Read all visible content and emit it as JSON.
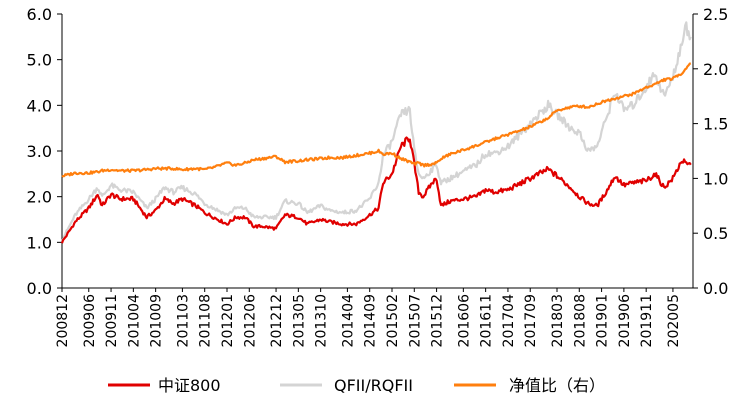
{
  "chart_data": {
    "type": "line",
    "title": "",
    "xlabel": "",
    "ylabel": "",
    "y_left": {
      "lim": [
        0,
        6
      ],
      "ticks": [
        "0.0",
        "1.0",
        "2.0",
        "3.0",
        "4.0",
        "5.0",
        "6.0"
      ]
    },
    "y_right": {
      "lim": [
        0,
        2.5
      ],
      "ticks": [
        "0.0",
        "0.5",
        "1.0",
        "1.5",
        "2.0",
        "2.5"
      ]
    },
    "x_tick_labels": [
      "200812",
      "200906",
      "200911",
      "201004",
      "201009",
      "201103",
      "201108",
      "201201",
      "201206",
      "201212",
      "201305",
      "201310",
      "201404",
      "201409",
      "201502",
      "201507",
      "201512",
      "201606",
      "201611",
      "201704",
      "201709",
      "201803",
      "201808",
      "201901",
      "201906",
      "201911",
      "202005"
    ],
    "grid": false,
    "legend_position": "bottom",
    "series": [
      {
        "name": "中证800",
        "axis": "left",
        "color": "#e00000",
        "points": [
          [
            "200812",
            1.0
          ],
          [
            "200903",
            1.45
          ],
          [
            "200906",
            1.75
          ],
          [
            "200908",
            2.05
          ],
          [
            "200909",
            1.8
          ],
          [
            "200911",
            2.05
          ],
          [
            "201001",
            1.95
          ],
          [
            "201004",
            1.95
          ],
          [
            "201007",
            1.55
          ],
          [
            "201009",
            1.7
          ],
          [
            "201011",
            1.95
          ],
          [
            "201101",
            1.85
          ],
          [
            "201103",
            1.95
          ],
          [
            "201106",
            1.8
          ],
          [
            "201108",
            1.65
          ],
          [
            "201110",
            1.55
          ],
          [
            "201201",
            1.4
          ],
          [
            "201203",
            1.55
          ],
          [
            "201205",
            1.55
          ],
          [
            "201207",
            1.35
          ],
          [
            "201209",
            1.35
          ],
          [
            "201212",
            1.3
          ],
          [
            "201302",
            1.6
          ],
          [
            "201305",
            1.55
          ],
          [
            "201307",
            1.4
          ],
          [
            "201310",
            1.5
          ],
          [
            "201312",
            1.45
          ],
          [
            "201403",
            1.4
          ],
          [
            "201406",
            1.4
          ],
          [
            "201409",
            1.6
          ],
          [
            "201411",
            1.75
          ],
          [
            "201412",
            2.3
          ],
          [
            "201502",
            2.5
          ],
          [
            "201504",
            3.1
          ],
          [
            "201506",
            3.3
          ],
          [
            "201507",
            2.7
          ],
          [
            "201508",
            2.1
          ],
          [
            "201509",
            2.0
          ],
          [
            "201511",
            2.3
          ],
          [
            "201512",
            2.4
          ],
          [
            "201601",
            1.8
          ],
          [
            "201603",
            1.9
          ],
          [
            "201606",
            1.95
          ],
          [
            "201609",
            2.0
          ],
          [
            "201611",
            2.15
          ],
          [
            "201701",
            2.1
          ],
          [
            "201704",
            2.15
          ],
          [
            "201707",
            2.3
          ],
          [
            "201709",
            2.4
          ],
          [
            "201801",
            2.6
          ],
          [
            "201803",
            2.45
          ],
          [
            "201806",
            2.2
          ],
          [
            "201808",
            2.0
          ],
          [
            "201810",
            1.85
          ],
          [
            "201812",
            1.8
          ],
          [
            "201902",
            2.1
          ],
          [
            "201904",
            2.45
          ],
          [
            "201906",
            2.25
          ],
          [
            "201908",
            2.3
          ],
          [
            "201911",
            2.35
          ],
          [
            "202001",
            2.5
          ],
          [
            "202003",
            2.2
          ],
          [
            "202005",
            2.4
          ],
          [
            "202007",
            2.8
          ],
          [
            "202008",
            2.7
          ],
          [
            "202009",
            2.7
          ]
        ]
      },
      {
        "name": "QFII/RQFII",
        "axis": "left",
        "color": "#d4d4d4",
        "points": [
          [
            "200812",
            1.05
          ],
          [
            "200903",
            1.6
          ],
          [
            "200906",
            1.95
          ],
          [
            "200908",
            2.2
          ],
          [
            "200909",
            2.0
          ],
          [
            "200911",
            2.25
          ],
          [
            "201001",
            2.15
          ],
          [
            "201004",
            2.1
          ],
          [
            "201007",
            1.75
          ],
          [
            "201009",
            1.95
          ],
          [
            "201011",
            2.2
          ],
          [
            "201101",
            2.1
          ],
          [
            "201103",
            2.2
          ],
          [
            "201106",
            2.05
          ],
          [
            "201108",
            1.85
          ],
          [
            "201110",
            1.75
          ],
          [
            "201201",
            1.6
          ],
          [
            "201203",
            1.75
          ],
          [
            "201205",
            1.75
          ],
          [
            "201207",
            1.55
          ],
          [
            "201209",
            1.55
          ],
          [
            "201212",
            1.55
          ],
          [
            "201302",
            1.9
          ],
          [
            "201305",
            1.85
          ],
          [
            "201307",
            1.65
          ],
          [
            "201310",
            1.8
          ],
          [
            "201312",
            1.7
          ],
          [
            "201403",
            1.65
          ],
          [
            "201406",
            1.7
          ],
          [
            "201409",
            1.95
          ],
          [
            "201411",
            2.3
          ],
          [
            "201412",
            2.9
          ],
          [
            "201502",
            3.2
          ],
          [
            "201504",
            3.8
          ],
          [
            "201506",
            3.9
          ],
          [
            "201507",
            3.0
          ],
          [
            "201508",
            2.5
          ],
          [
            "201509",
            2.4
          ],
          [
            "201511",
            2.6
          ],
          [
            "201512",
            2.7
          ],
          [
            "201601",
            2.3
          ],
          [
            "201603",
            2.4
          ],
          [
            "201606",
            2.55
          ],
          [
            "201609",
            2.7
          ],
          [
            "201611",
            2.95
          ],
          [
            "201701",
            2.95
          ],
          [
            "201704",
            3.1
          ],
          [
            "201707",
            3.4
          ],
          [
            "201709",
            3.6
          ],
          [
            "201801",
            4.0
          ],
          [
            "201803",
            3.8
          ],
          [
            "201806",
            3.5
          ],
          [
            "201808",
            3.4
          ],
          [
            "201810",
            3.0
          ],
          [
            "201812",
            3.1
          ],
          [
            "201902",
            3.7
          ],
          [
            "201904",
            4.3
          ],
          [
            "201906",
            3.9
          ],
          [
            "201908",
            4.0
          ],
          [
            "201911",
            4.4
          ],
          [
            "202001",
            4.7
          ],
          [
            "202003",
            4.2
          ],
          [
            "202005",
            4.6
          ],
          [
            "202007",
            5.4
          ],
          [
            "202008",
            5.7
          ],
          [
            "202009",
            5.5
          ]
        ]
      },
      {
        "name": "净值比（右）",
        "axis": "right",
        "color": "#ff7f0e",
        "points": [
          [
            "200812",
            1.02
          ],
          [
            "200903",
            1.05
          ],
          [
            "200906",
            1.05
          ],
          [
            "200908",
            1.06
          ],
          [
            "200909",
            1.07
          ],
          [
            "200911",
            1.08
          ],
          [
            "201001",
            1.07
          ],
          [
            "201004",
            1.07
          ],
          [
            "201007",
            1.08
          ],
          [
            "201009",
            1.09
          ],
          [
            "201011",
            1.09
          ],
          [
            "201101",
            1.09
          ],
          [
            "201103",
            1.08
          ],
          [
            "201106",
            1.09
          ],
          [
            "201108",
            1.08
          ],
          [
            "201110",
            1.1
          ],
          [
            "201201",
            1.14
          ],
          [
            "201203",
            1.12
          ],
          [
            "201205",
            1.14
          ],
          [
            "201207",
            1.17
          ],
          [
            "201209",
            1.18
          ],
          [
            "201212",
            1.2
          ],
          [
            "201302",
            1.15
          ],
          [
            "201305",
            1.16
          ],
          [
            "201307",
            1.17
          ],
          [
            "201310",
            1.18
          ],
          [
            "201312",
            1.19
          ],
          [
            "201403",
            1.19
          ],
          [
            "201406",
            1.21
          ],
          [
            "201409",
            1.23
          ],
          [
            "201411",
            1.25
          ],
          [
            "201412",
            1.22
          ],
          [
            "201502",
            1.23
          ],
          [
            "201504",
            1.18
          ],
          [
            "201506",
            1.15
          ],
          [
            "201507",
            1.13
          ],
          [
            "201508",
            1.14
          ],
          [
            "201509",
            1.12
          ],
          [
            "201511",
            1.13
          ],
          [
            "201512",
            1.14
          ],
          [
            "201601",
            1.18
          ],
          [
            "201603",
            1.22
          ],
          [
            "201606",
            1.26
          ],
          [
            "201609",
            1.3
          ],
          [
            "201611",
            1.33
          ],
          [
            "201701",
            1.36
          ],
          [
            "201704",
            1.4
          ],
          [
            "201707",
            1.44
          ],
          [
            "201709",
            1.47
          ],
          [
            "201801",
            1.55
          ],
          [
            "201803",
            1.62
          ],
          [
            "201806",
            1.65
          ],
          [
            "201808",
            1.66
          ],
          [
            "201810",
            1.65
          ],
          [
            "201812",
            1.68
          ],
          [
            "201902",
            1.71
          ],
          [
            "201904",
            1.73
          ],
          [
            "201906",
            1.75
          ],
          [
            "201908",
            1.77
          ],
          [
            "201911",
            1.83
          ],
          [
            "202001",
            1.86
          ],
          [
            "202003",
            1.9
          ],
          [
            "202005",
            1.91
          ],
          [
            "202007",
            1.96
          ],
          [
            "202008",
            2.01
          ],
          [
            "202009",
            2.05
          ]
        ]
      }
    ]
  }
}
